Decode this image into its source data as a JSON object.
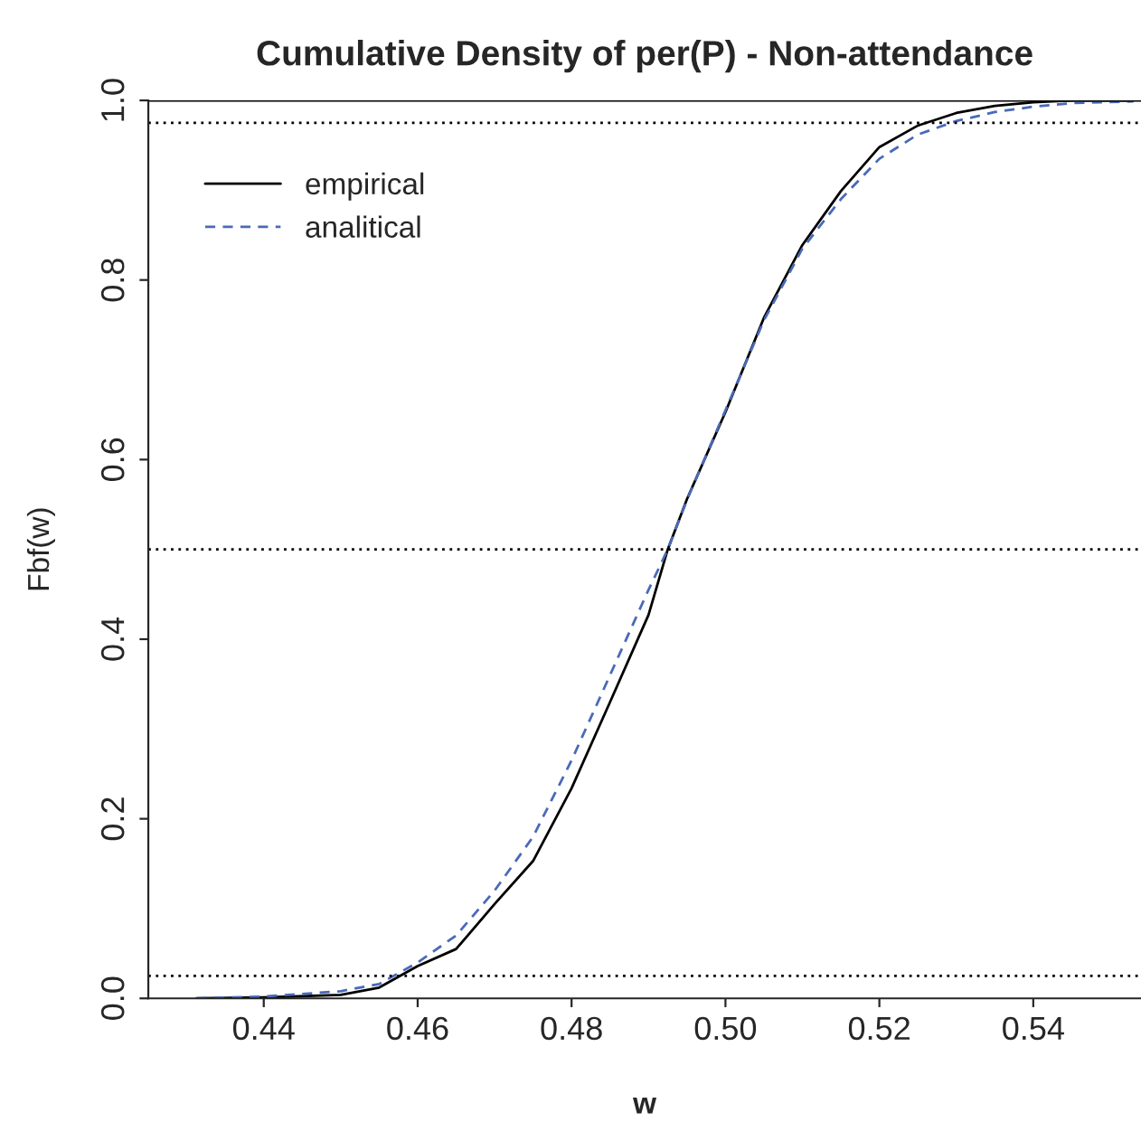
{
  "chart_data": {
    "type": "line",
    "title": "Cumulative Density of per(P) - Non-attendance",
    "xlabel": "w",
    "ylabel": "Fbf(w)",
    "x": [
      0.4313,
      0.44,
      0.45,
      0.455,
      0.46,
      0.465,
      0.47,
      0.475,
      0.48,
      0.485,
      0.49,
      0.4925,
      0.495,
      0.5,
      0.505,
      0.51,
      0.515,
      0.52,
      0.525,
      0.53,
      0.535,
      0.54,
      0.545,
      0.553
    ],
    "series": [
      {
        "name": "empirical",
        "color": "#000000",
        "line_style": "solid",
        "values": [
          0,
          0.001,
          0.004,
          0.012,
          0.036,
          0.055,
          0.105,
          0.153,
          0.234,
          0.33,
          0.427,
          0.5,
          0.556,
          0.653,
          0.758,
          0.839,
          0.899,
          0.948,
          0.972,
          0.986,
          0.994,
          0.998,
          1.0,
          1.0
        ]
      },
      {
        "name": "analitical",
        "color": "#4a6ab8",
        "line_style": "dashed",
        "values": [
          0,
          0.002,
          0.008,
          0.016,
          0.04,
          0.07,
          0.12,
          0.18,
          0.265,
          0.36,
          0.455,
          0.5,
          0.555,
          0.655,
          0.755,
          0.835,
          0.89,
          0.935,
          0.962,
          0.977,
          0.987,
          0.993,
          0.997,
          0.999
        ]
      }
    ],
    "xlim": [
      0.425,
      0.554
    ],
    "ylim": [
      0,
      1
    ],
    "xticks": [
      {
        "value": 0.44,
        "label": "0.44"
      },
      {
        "value": 0.46,
        "label": "0.46"
      },
      {
        "value": 0.48,
        "label": "0.48"
      },
      {
        "value": 0.5,
        "label": "0.50"
      },
      {
        "value": 0.52,
        "label": "0.52"
      },
      {
        "value": 0.54,
        "label": "0.54"
      }
    ],
    "yticks": [
      {
        "value": 0,
        "label": "0.0"
      },
      0.2,
      0.4,
      0.6,
      0.8,
      {
        "value": 1,
        "label": "1.0"
      }
    ],
    "ref_lines": [
      {
        "axis": "y",
        "value": 0.025,
        "line_style": "dotted"
      },
      {
        "axis": "y",
        "value": 0.5,
        "line_style": "dotted"
      },
      {
        "axis": "y",
        "value": 0.975,
        "line_style": "dotted"
      },
      {
        "axis": "y",
        "value": 1,
        "line_style": "solid"
      }
    ],
    "grid": false,
    "legend": "top left"
  }
}
